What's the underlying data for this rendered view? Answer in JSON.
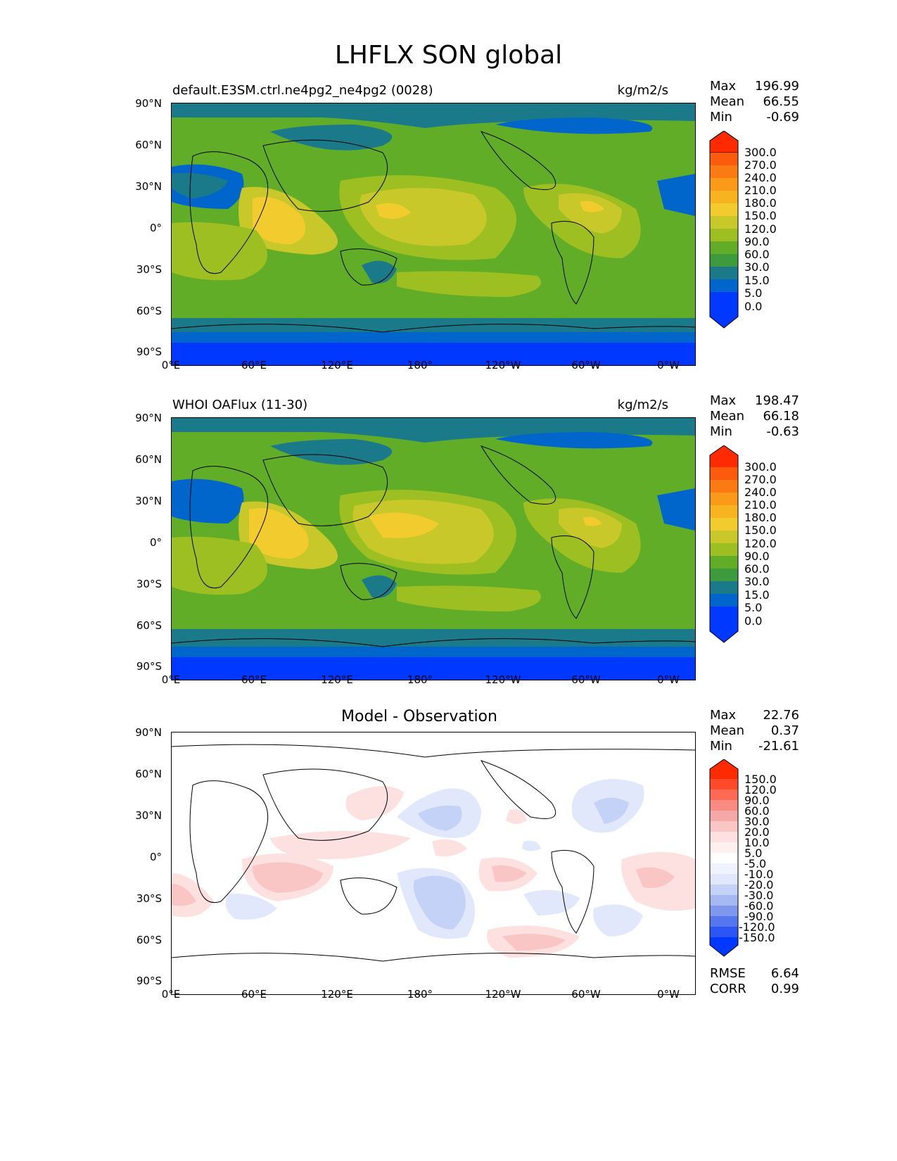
{
  "title": "LHFLX SON global",
  "lat_ticks": [
    "90°N",
    "60°N",
    "30°N",
    "0°",
    "30°S",
    "60°S",
    "90°S"
  ],
  "lon_ticks": [
    "0°E",
    "60°E",
    "120°E",
    "180°",
    "120°W",
    "60°W",
    "0°W"
  ],
  "panels": [
    {
      "left_title": "default.E3SM.ctrl.ne4pg2_ne4pg2 (0028)",
      "right_title": "kg/m2/s",
      "center_title": "",
      "stats": [
        {
          "label": "Max",
          "value": "196.99"
        },
        {
          "label": "Mean",
          "value": "66.55"
        },
        {
          "label": "Min",
          "value": "-0.69"
        }
      ],
      "colorbar_labels": [
        "300.0",
        "270.0",
        "240.0",
        "210.0",
        "180.0",
        "150.0",
        "120.0",
        "90.0",
        "60.0",
        "30.0",
        "15.0",
        "5.0",
        "0.0"
      ]
    },
    {
      "left_title": "WHOI OAFlux (11-30)",
      "right_title": "kg/m2/s",
      "center_title": "",
      "stats": [
        {
          "label": "Max",
          "value": "198.47"
        },
        {
          "label": "Mean",
          "value": "66.18"
        },
        {
          "label": "Min",
          "value": "-0.63"
        }
      ],
      "colorbar_labels": [
        "300.0",
        "270.0",
        "240.0",
        "210.0",
        "180.0",
        "150.0",
        "120.0",
        "90.0",
        "60.0",
        "30.0",
        "15.0",
        "5.0",
        "0.0"
      ]
    },
    {
      "left_title": "",
      "right_title": "",
      "center_title": "Model - Observation",
      "stats": [
        {
          "label": "Max",
          "value": "22.76"
        },
        {
          "label": "Mean",
          "value": "0.37"
        },
        {
          "label": "Min",
          "value": "-21.61"
        }
      ],
      "extra_stats": [
        {
          "label": "RMSE",
          "value": "6.64"
        },
        {
          "label": "CORR",
          "value": "0.99"
        }
      ],
      "colorbar_labels": [
        "150.0",
        "120.0",
        "90.0",
        "60.0",
        "30.0",
        "20.0",
        "10.0",
        "5.0",
        "-5.0",
        "-10.0",
        "-20.0",
        "-30.0",
        "-60.0",
        "-90.0",
        "-120.0",
        "-150.0"
      ]
    }
  ],
  "colors": {
    "field_scale": [
      "#0038ff",
      "#0066cc",
      "#1a7a8a",
      "#3d9a3d",
      "#62ad27",
      "#9dbf22",
      "#c9c82a",
      "#f2cc2e",
      "#f8b320",
      "#fa9a18",
      "#fb7a12",
      "#fc5a0c",
      "#ff2a00"
    ],
    "diff_positive": [
      "#fde0e0",
      "#f9c5c5",
      "#f5a8a8"
    ],
    "diff_negative": [
      "#e2e8fb",
      "#c5d2f7",
      "#a6b8f2"
    ]
  }
}
